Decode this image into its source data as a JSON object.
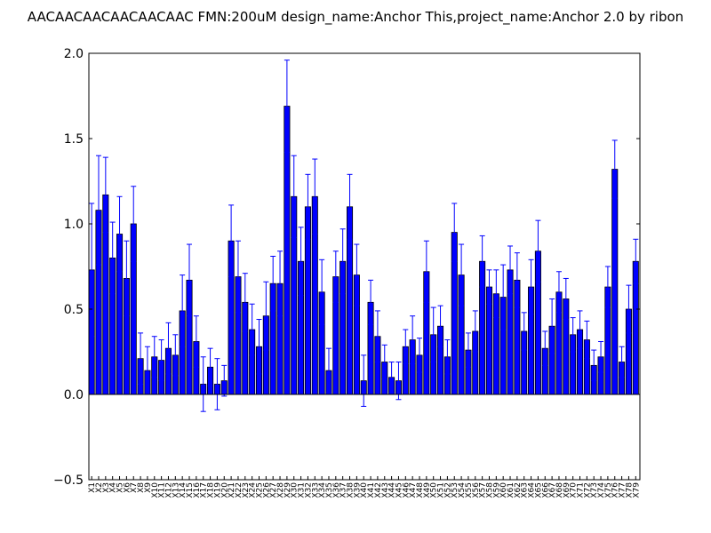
{
  "chart_data": {
    "type": "bar",
    "title": "AACAACAACAACAACAAC  FMN:200uM  design_name:Anchor This,project_name:Anchor 2.0 by ribon",
    "xlabel": "",
    "ylabel": "",
    "ylim": [
      -0.5,
      2.0
    ],
    "yticks": [
      "2.0",
      "1.5",
      "1.0",
      "0.5",
      "0.0",
      "−0.5"
    ],
    "ytick_values": [
      2.0,
      1.5,
      1.0,
      0.5,
      0.0,
      -0.5
    ],
    "grid": false,
    "legend": "none",
    "bar_color": "#0000ff",
    "error_color": "#0000ff",
    "categories": [
      "X1",
      "X2",
      "X3",
      "X4",
      "X5",
      "X6",
      "X7",
      "X8",
      "X9",
      "X10",
      "X11",
      "X12",
      "X13",
      "X14",
      "X15",
      "X16",
      "X17",
      "X18",
      "X19",
      "X20",
      "X21",
      "X22",
      "X23",
      "X24",
      "X25",
      "X26",
      "X27",
      "X28",
      "X29",
      "X30",
      "X31",
      "X32",
      "X33",
      "X34",
      "X35",
      "X36",
      "X37",
      "X38",
      "X39",
      "X40",
      "X41",
      "X42",
      "X43",
      "X44",
      "X45",
      "X46",
      "X47",
      "X48",
      "X49",
      "X50",
      "X51",
      "X52",
      "X53",
      "X54",
      "X55",
      "X56",
      "X57",
      "X58",
      "X59",
      "X60",
      "X61",
      "X62",
      "X63",
      "X64",
      "X65",
      "X66",
      "X67",
      "X68",
      "X69",
      "X70",
      "X71",
      "X72",
      "X73",
      "X74",
      "X75",
      "X76",
      "X77",
      "X78",
      "X79"
    ],
    "values": [
      0.73,
      1.08,
      1.17,
      0.8,
      0.94,
      0.68,
      1.0,
      0.21,
      0.14,
      0.22,
      0.2,
      0.27,
      0.23,
      0.49,
      0.67,
      0.31,
      0.06,
      0.16,
      0.06,
      0.08,
      0.9,
      0.69,
      0.54,
      0.38,
      0.28,
      0.46,
      0.65,
      0.65,
      1.69,
      1.16,
      0.78,
      1.1,
      1.16,
      0.6,
      0.14,
      0.69,
      0.78,
      1.1,
      0.7,
      0.08,
      0.54,
      0.34,
      0.19,
      0.1,
      0.08,
      0.28,
      0.32,
      0.23,
      0.72,
      0.35,
      0.4,
      0.22,
      0.95,
      0.7,
      0.26,
      0.37,
      0.78,
      0.63,
      0.59,
      0.57,
      0.73,
      0.67,
      0.37,
      0.63,
      0.84,
      0.27,
      0.4,
      0.6,
      0.56,
      0.35,
      0.38,
      0.32,
      0.17,
      0.22,
      0.63,
      1.32,
      0.19,
      0.5,
      0.78
    ],
    "errors": [
      0.39,
      0.32,
      0.22,
      0.21,
      0.22,
      0.22,
      0.22,
      0.15,
      0.14,
      0.12,
      0.12,
      0.15,
      0.12,
      0.21,
      0.21,
      0.15,
      0.16,
      0.11,
      0.15,
      0.09,
      0.21,
      0.21,
      0.17,
      0.15,
      0.16,
      0.2,
      0.16,
      0.19,
      0.27,
      0.24,
      0.2,
      0.19,
      0.22,
      0.19,
      0.13,
      0.15,
      0.19,
      0.19,
      0.18,
      0.15,
      0.13,
      0.15,
      0.1,
      0.09,
      0.11,
      0.1,
      0.14,
      0.1,
      0.18,
      0.16,
      0.12,
      0.1,
      0.17,
      0.18,
      0.1,
      0.12,
      0.15,
      0.1,
      0.14,
      0.19,
      0.14,
      0.16,
      0.11,
      0.16,
      0.18,
      0.1,
      0.16,
      0.12,
      0.12,
      0.1,
      0.11,
      0.11,
      0.09,
      0.09,
      0.12,
      0.17,
      0.09,
      0.14,
      0.13
    ]
  }
}
